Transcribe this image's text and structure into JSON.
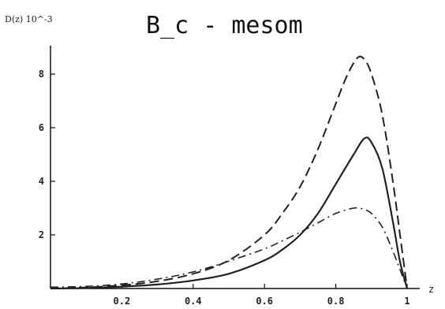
{
  "chart_data": {
    "type": "line",
    "title": "B_c - mesom",
    "ylabel": "D(z) 10^-3",
    "xlabel": "z",
    "xlim": [
      0,
      1
    ],
    "ylim": [
      0,
      9
    ],
    "xticks": [
      "0.2",
      "0.4",
      "0.6",
      "0.8",
      "1"
    ],
    "yticks": [
      "2",
      "4",
      "6",
      "8"
    ],
    "grid": false,
    "legend": "none",
    "series": [
      {
        "style": "solid",
        "x": [
          0.0,
          0.1,
          0.2,
          0.3,
          0.4,
          0.5,
          0.6,
          0.65,
          0.7,
          0.75,
          0.8,
          0.85,
          0.88,
          0.9,
          0.93,
          0.96,
          0.98,
          1.0
        ],
        "y": [
          0.0,
          0.02,
          0.07,
          0.15,
          0.3,
          0.55,
          1.05,
          1.45,
          2.0,
          2.8,
          3.9,
          5.0,
          5.6,
          5.45,
          4.5,
          2.5,
          1.0,
          0.0
        ]
      },
      {
        "style": "dashed",
        "x": [
          0.0,
          0.1,
          0.2,
          0.3,
          0.4,
          0.5,
          0.6,
          0.65,
          0.7,
          0.75,
          0.8,
          0.83,
          0.86,
          0.88,
          0.9,
          0.93,
          0.96,
          0.98,
          1.0
        ],
        "y": [
          0.0,
          0.04,
          0.12,
          0.27,
          0.55,
          1.05,
          2.0,
          2.8,
          3.8,
          5.2,
          6.9,
          7.9,
          8.6,
          8.55,
          8.0,
          6.5,
          4.0,
          2.0,
          0.0
        ]
      },
      {
        "style": "dashdot",
        "x": [
          0.0,
          0.1,
          0.2,
          0.3,
          0.4,
          0.5,
          0.6,
          0.65,
          0.7,
          0.75,
          0.8,
          0.85,
          0.88,
          0.9,
          0.93,
          0.96,
          0.98,
          1.0
        ],
        "y": [
          0.05,
          0.08,
          0.17,
          0.35,
          0.62,
          1.02,
          1.48,
          1.78,
          2.1,
          2.45,
          2.8,
          3.0,
          2.95,
          2.8,
          2.3,
          1.4,
          0.7,
          0.0
        ]
      }
    ]
  }
}
